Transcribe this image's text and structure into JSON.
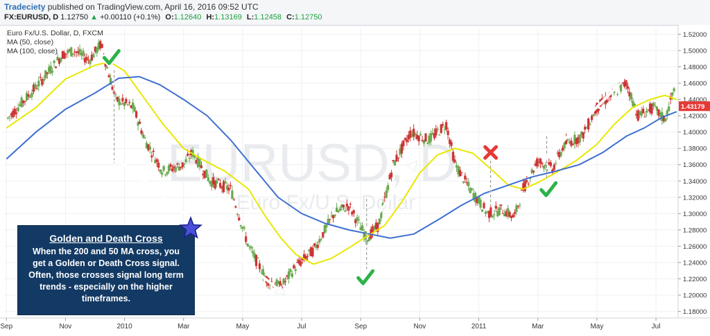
{
  "header": {
    "publisher": "Tradeciety",
    "published_text": "published on TradingView.com, April 16, 2016 09:52 UTC",
    "symbol": "FX:EURUSD, D",
    "price": "1.12750",
    "change_arrow": "▲",
    "change": "+0.00110 (+0.1%)",
    "open_label": "O:",
    "open": "1.12640",
    "high_label": "H:",
    "high": "1.13169",
    "low_label": "L:",
    "low": "1.12458",
    "close_label": "C:",
    "close": "1.12750"
  },
  "legend": {
    "line1": "Euro Fx/U.S. Dollar, D, FXCM",
    "line2": "MA (50, close)",
    "line3": "MA (100, close)"
  },
  "watermark": {
    "big": "EURUSD, D",
    "small": "Euro Fx/U.S. Dollar"
  },
  "infobox": {
    "title": "Golden and Death Cross",
    "lines": [
      "When the 200 and 50 MA cross, you",
      "get a Golden or Death Cross signal.",
      "Often, those crosses signal long term",
      "trends - especially on the higher",
      "timeframes."
    ]
  },
  "colors": {
    "up_candle": "#6aa84f",
    "down_candle": "#cc3333",
    "ma50": "#e8e800",
    "ma100": "#3d6fd0",
    "price_badge": "#e53935",
    "box_bg": "#133a64",
    "check": "#2cb34a",
    "cross_mark": "#e53935"
  },
  "chart_data": {
    "type": "line",
    "title": "Euro Fx/U.S. Dollar, D, FXCM",
    "y_ticks": [
      "1.52000",
      "1.50000",
      "1.48000",
      "1.46000",
      "1.44000",
      "1.42000",
      "1.40000",
      "1.38000",
      "1.36000",
      "1.34000",
      "1.32000",
      "1.30000",
      "1.28000",
      "1.26000",
      "1.24000",
      "1.22000",
      "1.20000",
      "1.18000"
    ],
    "ylim": [
      1.172,
      1.528
    ],
    "x_ticks": [
      "Sep",
      "Nov",
      "2010",
      "Mar",
      "May",
      "Jul",
      "Sep",
      "Nov",
      "2011",
      "Mar",
      "May",
      "Jul"
    ],
    "x_tick_months": [
      0,
      2,
      4,
      6,
      8,
      10,
      12,
      14,
      16,
      18,
      20,
      22
    ],
    "xlim_months": [
      -0.1,
      22.75
    ],
    "last_price_label": "1.43179",
    "last_price": 1.43179,
    "price_path": [
      {
        "m": 0,
        "v": 1.415
      },
      {
        "m": 1,
        "v": 1.455
      },
      {
        "m": 1.9,
        "v": 1.495
      },
      {
        "m": 2.3,
        "v": 1.5
      },
      {
        "m": 2.8,
        "v": 1.488
      },
      {
        "m": 3.2,
        "v": 1.508
      },
      {
        "m": 3.7,
        "v": 1.44
      },
      {
        "m": 4.3,
        "v": 1.43
      },
      {
        "m": 4.7,
        "v": 1.39
      },
      {
        "m": 5.3,
        "v": 1.352
      },
      {
        "m": 6.0,
        "v": 1.36
      },
      {
        "m": 6.3,
        "v": 1.375
      },
      {
        "m": 6.9,
        "v": 1.34
      },
      {
        "m": 7.6,
        "v": 1.33
      },
      {
        "m": 8.2,
        "v": 1.26
      },
      {
        "m": 8.8,
        "v": 1.22
      },
      {
        "m": 9.3,
        "v": 1.21
      },
      {
        "m": 9.8,
        "v": 1.235
      },
      {
        "m": 10.4,
        "v": 1.255
      },
      {
        "m": 11.1,
        "v": 1.3
      },
      {
        "m": 11.6,
        "v": 1.31
      },
      {
        "m": 12.2,
        "v": 1.27
      },
      {
        "m": 12.6,
        "v": 1.285
      },
      {
        "m": 13.1,
        "v": 1.36
      },
      {
        "m": 13.7,
        "v": 1.4
      },
      {
        "m": 14.3,
        "v": 1.39
      },
      {
        "m": 14.9,
        "v": 1.41
      },
      {
        "m": 15.2,
        "v": 1.36
      },
      {
        "m": 15.7,
        "v": 1.33
      },
      {
        "m": 16.3,
        "v": 1.3
      },
      {
        "m": 16.8,
        "v": 1.305
      },
      {
        "m": 17.2,
        "v": 1.295
      },
      {
        "m": 17.5,
        "v": 1.33
      },
      {
        "m": 18.0,
        "v": 1.365
      },
      {
        "m": 18.5,
        "v": 1.355
      },
      {
        "m": 18.9,
        "v": 1.385
      },
      {
        "m": 19.5,
        "v": 1.395
      },
      {
        "m": 20.0,
        "v": 1.43
      },
      {
        "m": 20.5,
        "v": 1.445
      },
      {
        "m": 21.0,
        "v": 1.46
      },
      {
        "m": 21.4,
        "v": 1.42
      },
      {
        "m": 21.9,
        "v": 1.43
      },
      {
        "m": 22.3,
        "v": 1.415
      },
      {
        "m": 22.6,
        "v": 1.45
      }
    ],
    "series": [
      {
        "name": "MA (50, close)",
        "points": [
          {
            "m": 0,
            "v": 1.405
          },
          {
            "m": 1,
            "v": 1.43
          },
          {
            "m": 2,
            "v": 1.465
          },
          {
            "m": 3,
            "v": 1.482
          },
          {
            "m": 3.5,
            "v": 1.486
          },
          {
            "m": 4,
            "v": 1.475
          },
          {
            "m": 4.6,
            "v": 1.445
          },
          {
            "m": 5.3,
            "v": 1.41
          },
          {
            "m": 6,
            "v": 1.38
          },
          {
            "m": 6.7,
            "v": 1.365
          },
          {
            "m": 7.4,
            "v": 1.352
          },
          {
            "m": 8.2,
            "v": 1.33
          },
          {
            "m": 8.8,
            "v": 1.295
          },
          {
            "m": 9.3,
            "v": 1.27
          },
          {
            "m": 9.8,
            "v": 1.25
          },
          {
            "m": 10.4,
            "v": 1.238
          },
          {
            "m": 11,
            "v": 1.245
          },
          {
            "m": 11.6,
            "v": 1.258
          },
          {
            "m": 12.2,
            "v": 1.272
          },
          {
            "m": 12.8,
            "v": 1.285
          },
          {
            "m": 13.4,
            "v": 1.315
          },
          {
            "m": 14,
            "v": 1.35
          },
          {
            "m": 14.6,
            "v": 1.372
          },
          {
            "m": 15.2,
            "v": 1.38
          },
          {
            "m": 15.8,
            "v": 1.374
          },
          {
            "m": 16.4,
            "v": 1.355
          },
          {
            "m": 17,
            "v": 1.335
          },
          {
            "m": 17.5,
            "v": 1.33
          },
          {
            "m": 18,
            "v": 1.338
          },
          {
            "m": 18.6,
            "v": 1.35
          },
          {
            "m": 19.3,
            "v": 1.365
          },
          {
            "m": 20,
            "v": 1.385
          },
          {
            "m": 20.6,
            "v": 1.41
          },
          {
            "m": 21.2,
            "v": 1.43
          },
          {
            "m": 21.8,
            "v": 1.44
          },
          {
            "m": 22.3,
            "v": 1.445
          },
          {
            "m": 22.7,
            "v": 1.44
          }
        ]
      },
      {
        "name": "MA (100, close)",
        "points": [
          {
            "m": 0,
            "v": 1.367
          },
          {
            "m": 1,
            "v": 1.4
          },
          {
            "m": 2,
            "v": 1.428
          },
          {
            "m": 3,
            "v": 1.448
          },
          {
            "m": 3.8,
            "v": 1.466
          },
          {
            "m": 4.5,
            "v": 1.468
          },
          {
            "m": 5.2,
            "v": 1.458
          },
          {
            "m": 6,
            "v": 1.44
          },
          {
            "m": 6.8,
            "v": 1.42
          },
          {
            "m": 7.6,
            "v": 1.39
          },
          {
            "m": 8.4,
            "v": 1.355
          },
          {
            "m": 9.2,
            "v": 1.32
          },
          {
            "m": 10,
            "v": 1.3
          },
          {
            "m": 10.8,
            "v": 1.288
          },
          {
            "m": 11.6,
            "v": 1.28
          },
          {
            "m": 12.3,
            "v": 1.275
          },
          {
            "m": 13,
            "v": 1.27
          },
          {
            "m": 13.8,
            "v": 1.275
          },
          {
            "m": 14.6,
            "v": 1.292
          },
          {
            "m": 15.4,
            "v": 1.31
          },
          {
            "m": 16.2,
            "v": 1.325
          },
          {
            "m": 17,
            "v": 1.335
          },
          {
            "m": 17.8,
            "v": 1.345
          },
          {
            "m": 18.6,
            "v": 1.352
          },
          {
            "m": 19.4,
            "v": 1.36
          },
          {
            "m": 20.2,
            "v": 1.375
          },
          {
            "m": 21,
            "v": 1.395
          },
          {
            "m": 21.6,
            "v": 1.405
          },
          {
            "m": 22.2,
            "v": 1.418
          },
          {
            "m": 22.7,
            "v": 1.425
          }
        ]
      }
    ],
    "annotations": {
      "arrows": [
        {
          "from": {
            "m": 3.65,
            "v": 1.37
          },
          "to": {
            "m": 9.45,
            "v": 1.2
          }
        },
        {
          "from": {
            "m": 12.2,
            "v": 1.28
          },
          "to": {
            "m": 13.9,
            "v": 1.365
          }
        },
        {
          "from": {
            "m": 18.2,
            "v": 1.365
          },
          "to": {
            "m": 20.8,
            "v": 1.46
          }
        }
      ],
      "marks": [
        {
          "kind": "check",
          "m": 3.55,
          "v": 1.492
        },
        {
          "kind": "check",
          "m": 12.15,
          "v": 1.222
        },
        {
          "kind": "cross",
          "m": 16.4,
          "v": 1.375
        },
        {
          "kind": "check",
          "m": 18.35,
          "v": 1.33
        }
      ],
      "signal_lines": [
        {
          "m": 3.65,
          "v1": 1.476,
          "v2": 1.362
        },
        {
          "m": 12.2,
          "v1": 1.318,
          "v2": 1.232
        },
        {
          "m": 16.4,
          "v1": 1.365,
          "v2": 1.31
        },
        {
          "m": 18.3,
          "v1": 1.395,
          "v2": 1.343
        }
      ]
    }
  }
}
